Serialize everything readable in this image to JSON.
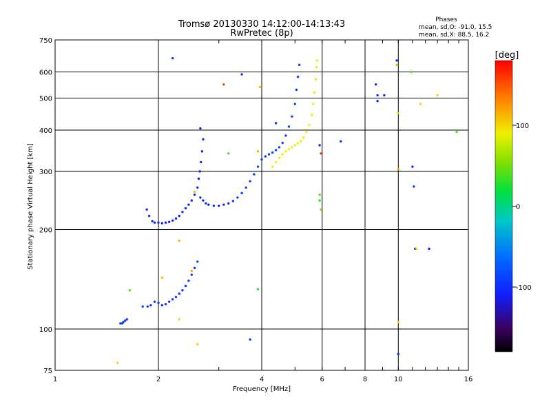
{
  "chart_data": {
    "type": "scatter",
    "title": "Tromsø 20130330 14:12:00-14:13:43",
    "subtitle": "RwPretec (8p)",
    "stats": {
      "heading": "Phases",
      "line1": "mean, sd,O: -91.0, 15.5",
      "line2": "mean, sd,X:  88.5, 16.2"
    },
    "xlabel": "Frequency [MHz]",
    "ylabel": "Stationary phase Virtual Height [km]",
    "xscale": "log",
    "yscale": "log",
    "xlim": [
      1,
      16
    ],
    "ylim": [
      75,
      750
    ],
    "xticks": [
      1,
      2,
      4,
      6,
      8,
      10,
      16
    ],
    "xtick_labels": [
      "1",
      "2",
      "4",
      "6",
      "8",
      "10",
      "16"
    ],
    "yticks": [
      75,
      100,
      200,
      300,
      400,
      500,
      600,
      750
    ],
    "ytick_labels": [
      "75",
      "100",
      "200",
      "300",
      "400",
      "500",
      "600",
      "750"
    ],
    "grid": true,
    "colorbar": {
      "label": "[deg]",
      "range": [
        -180,
        180
      ],
      "ticks": [
        100,
        0,
        -100
      ],
      "tick_labels": [
        "100",
        "0",
        "-100"
      ]
    },
    "series": [
      {
        "role": "O-mode low-layer trace",
        "phase": -95,
        "points": [
          [
            1.55,
            104
          ],
          [
            1.57,
            104
          ],
          [
            1.58,
            105
          ],
          [
            1.6,
            106
          ],
          [
            1.62,
            107
          ],
          [
            1.86,
            117
          ],
          [
            1.9,
            118
          ],
          [
            1.95,
            121
          ],
          [
            2.0,
            120
          ],
          [
            2.05,
            118
          ],
          [
            2.1,
            119
          ],
          [
            2.15,
            121
          ],
          [
            2.2,
            123
          ],
          [
            2.25,
            125
          ],
          [
            2.3,
            128
          ],
          [
            2.35,
            131
          ],
          [
            2.4,
            135
          ],
          [
            2.45,
            140
          ],
          [
            2.5,
            146
          ],
          [
            2.55,
            153
          ],
          [
            2.6,
            160
          ]
        ]
      },
      {
        "role": "O-mode E/F1 trace",
        "phase": -105,
        "points": [
          [
            1.85,
            230
          ],
          [
            1.88,
            220
          ],
          [
            1.92,
            212
          ],
          [
            1.95,
            210
          ],
          [
            2.0,
            210
          ],
          [
            2.05,
            209
          ],
          [
            2.1,
            210
          ],
          [
            2.15,
            211
          ],
          [
            2.2,
            213
          ],
          [
            2.25,
            216
          ],
          [
            2.3,
            220
          ],
          [
            2.35,
            226
          ],
          [
            2.4,
            232
          ],
          [
            2.45,
            238
          ],
          [
            2.5,
            245
          ],
          [
            2.55,
            255
          ],
          [
            2.6,
            268
          ],
          [
            2.62,
            285
          ],
          [
            2.64,
            300
          ],
          [
            2.66,
            320
          ],
          [
            2.68,
            345
          ],
          [
            2.7,
            375
          ],
          [
            2.65,
            250
          ],
          [
            2.7,
            245
          ],
          [
            2.75,
            240
          ],
          [
            2.8,
            238
          ],
          [
            2.9,
            236
          ],
          [
            3.0,
            236
          ],
          [
            3.1,
            238
          ],
          [
            3.2,
            240
          ]
        ]
      },
      {
        "role": "O-mode F2 trace",
        "phase": -90,
        "points": [
          [
            3.3,
            244
          ],
          [
            3.4,
            250
          ],
          [
            3.5,
            258
          ],
          [
            3.6,
            268
          ],
          [
            3.7,
            280
          ],
          [
            3.8,
            294
          ],
          [
            3.9,
            310
          ],
          [
            4.0,
            326
          ],
          [
            4.1,
            333
          ],
          [
            4.2,
            338
          ],
          [
            4.3,
            342
          ],
          [
            4.4,
            348
          ],
          [
            4.5,
            355
          ],
          [
            4.6,
            366
          ],
          [
            4.7,
            385
          ],
          [
            4.8,
            410
          ],
          [
            4.9,
            440
          ],
          [
            5.0,
            480
          ],
          [
            5.05,
            530
          ],
          [
            5.1,
            580
          ],
          [
            5.15,
            630
          ]
        ]
      },
      {
        "role": "X-mode F2 trace",
        "phase": 90,
        "points": [
          [
            4.3,
            310
          ],
          [
            4.4,
            320
          ],
          [
            4.5,
            330
          ],
          [
            4.6,
            338
          ],
          [
            4.7,
            345
          ],
          [
            4.8,
            350
          ],
          [
            4.9,
            355
          ],
          [
            5.0,
            360
          ],
          [
            5.1,
            365
          ],
          [
            5.2,
            370
          ],
          [
            5.3,
            380
          ],
          [
            5.4,
            395
          ],
          [
            5.5,
            415
          ],
          [
            5.6,
            445
          ],
          [
            5.65,
            480
          ],
          [
            5.7,
            520
          ],
          [
            5.75,
            570
          ],
          [
            5.78,
            620
          ],
          [
            5.8,
            650
          ]
        ]
      },
      {
        "role": "scattered echoes",
        "points": [
          [
            2.2,
            660,
            -100
          ],
          [
            3.1,
            550,
            150
          ],
          [
            3.5,
            590,
            -110
          ],
          [
            3.95,
            540,
            110
          ],
          [
            3.9,
            345,
            60
          ],
          [
            4.4,
            420,
            -100
          ],
          [
            5.9,
            360,
            -105
          ],
          [
            5.95,
            340,
            160
          ],
          [
            5.9,
            255,
            40
          ],
          [
            5.9,
            245,
            30
          ],
          [
            5.95,
            230,
            60
          ],
          [
            6.8,
            370,
            -100
          ],
          [
            8.6,
            550,
            -105
          ],
          [
            8.7,
            510,
            -110
          ],
          [
            8.7,
            490,
            -100
          ],
          [
            9.1,
            510,
            -110
          ],
          [
            9.9,
            650,
            -110
          ],
          [
            9.9,
            630,
            60
          ],
          [
            9.95,
            450,
            90
          ],
          [
            10.0,
            305,
            120
          ],
          [
            10.0,
            105,
            100
          ],
          [
            10.0,
            84,
            -110
          ],
          [
            10.9,
            600,
            40
          ],
          [
            11.0,
            310,
            -110
          ],
          [
            11.1,
            270,
            -100
          ],
          [
            11.2,
            175,
            -110
          ],
          [
            11.3,
            175,
            100
          ],
          [
            11.6,
            480,
            100
          ],
          [
            12.3,
            175,
            -110
          ],
          [
            13.0,
            510,
            100
          ],
          [
            14.8,
            395,
            40
          ],
          [
            3.7,
            93,
            -100
          ],
          [
            3.9,
            132,
            30
          ],
          [
            2.6,
            90,
            100
          ],
          [
            2.3,
            107,
            100
          ],
          [
            2.3,
            185,
            110
          ],
          [
            2.5,
            150,
            120
          ],
          [
            1.65,
            131,
            40
          ],
          [
            1.52,
            79,
            100
          ],
          [
            1.8,
            117,
            -90
          ],
          [
            2.05,
            143,
            110
          ],
          [
            2.55,
            260,
            110
          ],
          [
            3.2,
            340,
            40
          ],
          [
            2.65,
            405,
            -110
          ]
        ]
      }
    ]
  }
}
